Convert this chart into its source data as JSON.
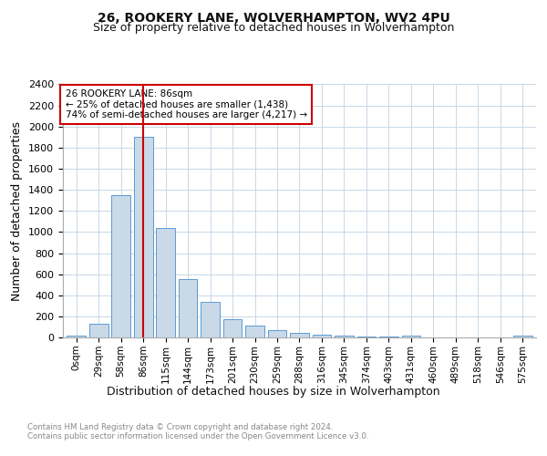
{
  "title": "26, ROOKERY LANE, WOLVERHAMPTON, WV2 4PU",
  "subtitle": "Size of property relative to detached houses in Wolverhampton",
  "xlabel": "Distribution of detached houses by size in Wolverhampton",
  "ylabel": "Number of detached properties",
  "footer_line1": "Contains HM Land Registry data © Crown copyright and database right 2024.",
  "footer_line2": "Contains public sector information licensed under the Open Government Licence v3.0.",
  "bar_labels": [
    "0sqm",
    "29sqm",
    "58sqm",
    "86sqm",
    "115sqm",
    "144sqm",
    "173sqm",
    "201sqm",
    "230sqm",
    "259sqm",
    "288sqm",
    "316sqm",
    "345sqm",
    "374sqm",
    "403sqm",
    "431sqm",
    "460sqm",
    "489sqm",
    "518sqm",
    "546sqm",
    "575sqm"
  ],
  "bar_values": [
    15,
    130,
    1350,
    1900,
    1040,
    550,
    340,
    170,
    110,
    65,
    40,
    30,
    20,
    10,
    5,
    20,
    3,
    2,
    2,
    2,
    15
  ],
  "bar_color": "#c9d9e8",
  "bar_edge_color": "#5b9bd5",
  "vline_x": 3,
  "vline_color": "#cc0000",
  "annotation_title": "26 ROOKERY LANE: 86sqm",
  "annotation_line1": "← 25% of detached houses are smaller (1,438)",
  "annotation_line2": "74% of semi-detached houses are larger (4,217) →",
  "annotation_box_color": "#cc0000",
  "ylim": [
    0,
    2400
  ],
  "yticks": [
    0,
    200,
    400,
    600,
    800,
    1000,
    1200,
    1400,
    1600,
    1800,
    2000,
    2200,
    2400
  ],
  "bg_color": "#ffffff",
  "grid_color": "#c8d8e8",
  "title_fontsize": 10,
  "subtitle_fontsize": 9
}
